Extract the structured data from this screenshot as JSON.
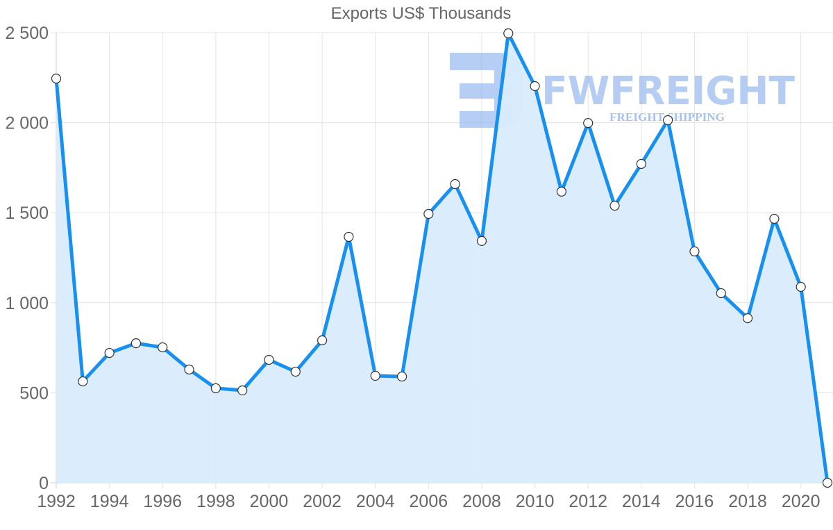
{
  "chart_data": {
    "type": "area",
    "title": "Exports US$ Thousands",
    "xlabel": "",
    "ylabel": "",
    "x": [
      1992,
      1993,
      1994,
      1995,
      1996,
      1997,
      1998,
      1999,
      2000,
      2001,
      2002,
      2003,
      2004,
      2005,
      2006,
      2007,
      2008,
      2009,
      2010,
      2011,
      2012,
      2013,
      2014,
      2015,
      2016,
      2017,
      2018,
      2019,
      2020,
      2021
    ],
    "series": [
      {
        "name": "Exports US$ Thousands",
        "values": [
          2245,
          563,
          721,
          775,
          752,
          629,
          525,
          513,
          683,
          617,
          791,
          1366,
          594,
          590,
          1493,
          1659,
          1343,
          2496,
          2203,
          1617,
          1998,
          1539,
          1771,
          2014,
          1285,
          1053,
          914,
          1466,
          1088,
          0
        ]
      }
    ],
    "ylim": [
      0,
      2500
    ],
    "yticks": [
      0,
      500,
      1000,
      1500,
      2000,
      2500
    ],
    "ytick_labels": [
      "0",
      "500",
      "1 000",
      "1 500",
      "2 000",
      "2 500"
    ],
    "xtick_labels": [
      "1992",
      "1994",
      "1996",
      "1998",
      "2000",
      "2002",
      "2004",
      "2006",
      "2008",
      "2010",
      "2012",
      "2014",
      "2016",
      "2018",
      "2020"
    ],
    "grid": true,
    "legend": "none",
    "colors": {
      "line": "#1890f0",
      "fill": "#d9ecfd",
      "grid": "#e3e3e3",
      "point_fill": "#ffffff",
      "point_stroke": "#333333"
    }
  },
  "watermark": {
    "brand": "FWFREIGHT",
    "tagline": "FREIGHT SHIPPING",
    "color": "#8fb3ee"
  }
}
